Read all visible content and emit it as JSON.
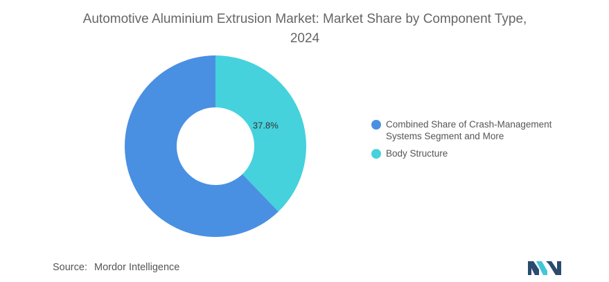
{
  "chart_data": {
    "type": "pie",
    "donut": true,
    "title_lines": [
      "Automotive Aluminium Extrusion Market: Market Share by Component Type,",
      "2024"
    ],
    "slices": [
      {
        "label": "Body Structure",
        "value": 37.8,
        "display": "37.8%",
        "color": "#45d2dc"
      },
      {
        "label": "Combined Share of Crash-Management Systems Segment and More",
        "value": 62.2,
        "display": "",
        "color": "#4a90e2"
      }
    ],
    "legend": {
      "placement": "right",
      "items": [
        {
          "lines": [
            "Combined Share of Crash-Management",
            "Systems Segment and More"
          ],
          "color": "#4a90e2"
        },
        {
          "lines": [
            "Body Structure"
          ],
          "color": "#45d2dc"
        }
      ]
    }
  },
  "footer": {
    "source_label": "Source:",
    "source_value": "Mordor Intelligence"
  },
  "logo": {
    "icon": "mordor-intelligence-logo",
    "colors": [
      "#2a4b6e",
      "#45c6d8"
    ]
  }
}
